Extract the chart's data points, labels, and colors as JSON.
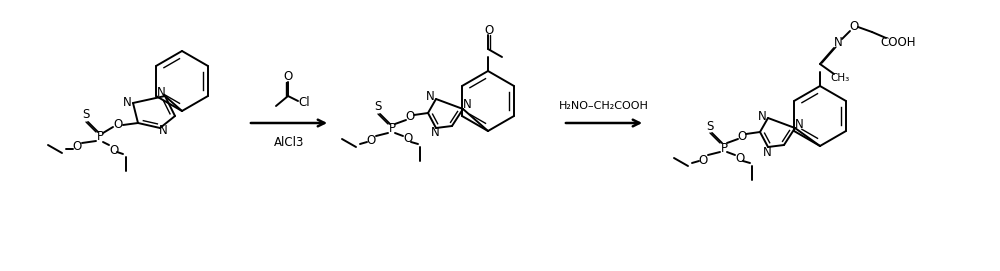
{
  "background": "#ffffff",
  "lw": 1.4,
  "lw2": 1.0,
  "fs": 8.5,
  "arrow_label1_above": "O",
  "arrow_label1_reagent": "Cl",
  "arrow_label1_below": "AlCl3",
  "arrow_label2": "H₂NO–CH₂COOH"
}
